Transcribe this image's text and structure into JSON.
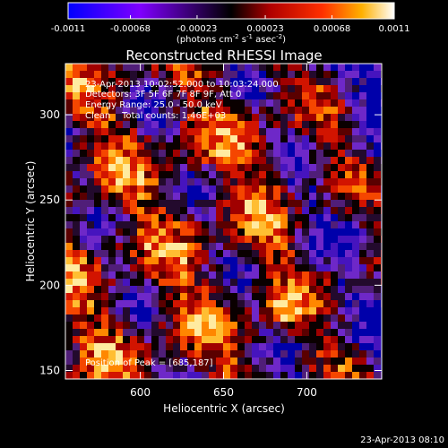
{
  "colorbar": {
    "ticks": [
      "-0.0011",
      "-0.00068",
      "-0.00023",
      "0.00023",
      "0.00068",
      "0.0011"
    ],
    "tick_values": [
      -0.0011,
      -0.00068,
      -0.00023,
      0.00023,
      0.00068,
      0.0011
    ],
    "range": [
      -0.0011,
      0.0011
    ],
    "unit_prefix": "(photons cm",
    "unit_exp1": "-2",
    "unit_mid": " s",
    "unit_exp2": "-1",
    "unit_mid2": " asec",
    "unit_exp3": "-2",
    "unit_suffix": ")"
  },
  "chart_data": {
    "type": "heatmap",
    "title": "Reconstructed RHESSI Image",
    "xlabel": "Heliocentric X (arcsec)",
    "ylabel": "Heliocentric Y (arcsec)",
    "xlim": [
      555,
      745
    ],
    "ylim": [
      145,
      330
    ],
    "x_ticks": [
      600,
      650,
      700
    ],
    "y_ticks": [
      150,
      200,
      250,
      300
    ],
    "peak": [
      685,
      187
    ],
    "annotations": {
      "time_range": "23-Apr-2013 10:02:52.000 to 10:03:24.000",
      "detectors": "Detectors: 3F 5F 6F 7F 8F 9F, Att 0",
      "energy": "Energy Range: 25.0 - 50.0 keV",
      "clean": "Clean    Total counts: 1.46E+03",
      "peak_text": "Position of Peak = [685,187]"
    }
  },
  "footer": {
    "timestamp": "23-Apr-2013 08:10"
  }
}
